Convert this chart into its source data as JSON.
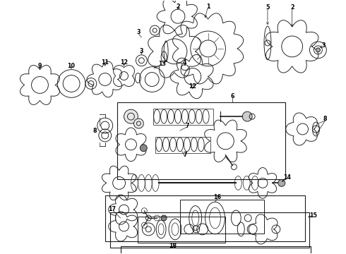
{
  "bg_color": "#ffffff",
  "line_color": "#1a1a1a",
  "fig_width": 4.9,
  "fig_height": 3.6,
  "dpi": 100,
  "label_fontsize": 6.0,
  "lw": 0.65
}
